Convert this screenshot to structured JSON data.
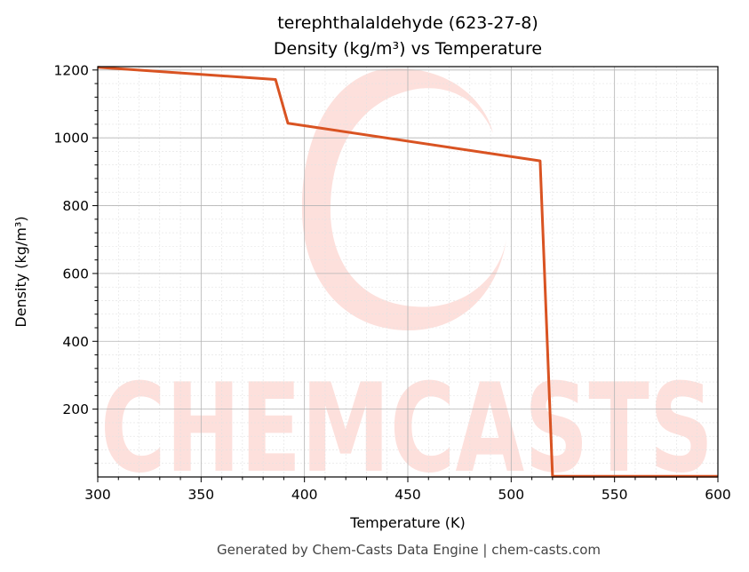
{
  "chart_data": {
    "type": "line",
    "title": "terephthalaldehyde (623-27-8)",
    "subtitle": "Density (kg/m³) vs Temperature",
    "xlabel": "Temperature (K)",
    "ylabel": "Density (kg/m³)",
    "xlim": [
      300,
      600
    ],
    "ylim": [
      0,
      1210
    ],
    "xticks": [
      300,
      350,
      400,
      450,
      500,
      550,
      600
    ],
    "yticks": [
      200,
      400,
      600,
      800,
      1000,
      1200
    ],
    "grid": true,
    "line_color": "#d95322",
    "series": [
      {
        "x": [
          300,
          386,
          392,
          514,
          520,
          600
        ],
        "y": [
          1208,
          1172,
          1043,
          932,
          2,
          2
        ]
      }
    ]
  },
  "watermark": "CHEMCASTS",
  "watermark_color": "#fde0dc",
  "footer": "Generated by Chem-Casts Data Engine | chem-casts.com"
}
